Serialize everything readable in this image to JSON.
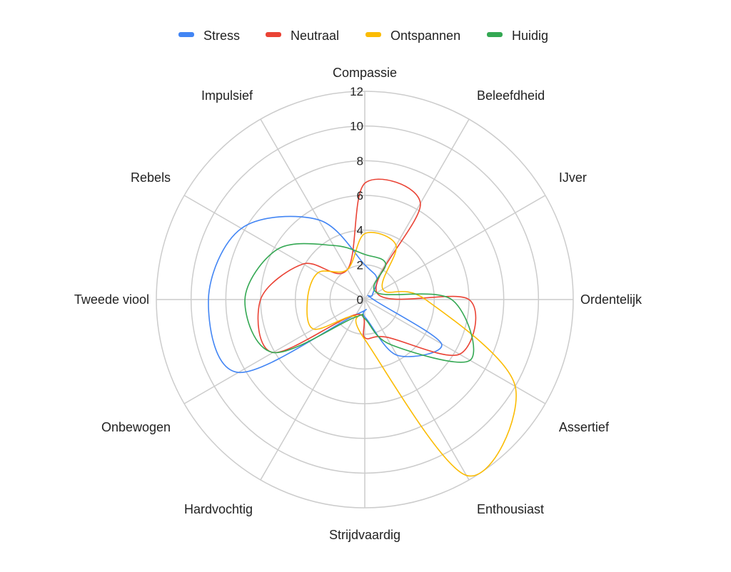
{
  "chart_data": {
    "type": "radar",
    "title": "",
    "categories": [
      "Compassie",
      "Beleefdheid",
      "IJver",
      "Ordentelijk",
      "Assertief",
      "Enthousiast",
      "Strijdvaardig",
      "Hardvochtig",
      "Onbewogen",
      "Tweede viool",
      "Rebels",
      "Impulsief"
    ],
    "rlim": [
      0,
      12
    ],
    "ticks": [
      "0",
      "2",
      "4",
      "6",
      "8",
      "10",
      "12"
    ],
    "grid": true,
    "legend_position": "top",
    "series": [
      {
        "name": "Stress",
        "color": "#4285f4",
        "values": [
          2,
          1.4,
          0.5,
          0.5,
          5.1,
          3.7,
          1,
          1,
          8.4,
          9,
          8.2,
          5.3
        ]
      },
      {
        "name": "Neutraal",
        "color": "#ea4335",
        "values": [
          6.7,
          6.4,
          0.8,
          6,
          6.3,
          2.5,
          2.2,
          1,
          6.1,
          6,
          4.1,
          2
        ]
      },
      {
        "name": "Ontspannen",
        "color": "#fbbc04",
        "values": [
          3.8,
          3.6,
          1.2,
          3.5,
          10,
          11.7,
          2.3,
          1.1,
          3.4,
          3.3,
          3.1,
          2
        ]
      },
      {
        "name": "Huidig",
        "color": "#34a853",
        "values": [
          2.6,
          2.4,
          0.8,
          5,
          7,
          3,
          1.1,
          1.2,
          6.1,
          6.9,
          5.8,
          3.6
        ]
      }
    ]
  }
}
